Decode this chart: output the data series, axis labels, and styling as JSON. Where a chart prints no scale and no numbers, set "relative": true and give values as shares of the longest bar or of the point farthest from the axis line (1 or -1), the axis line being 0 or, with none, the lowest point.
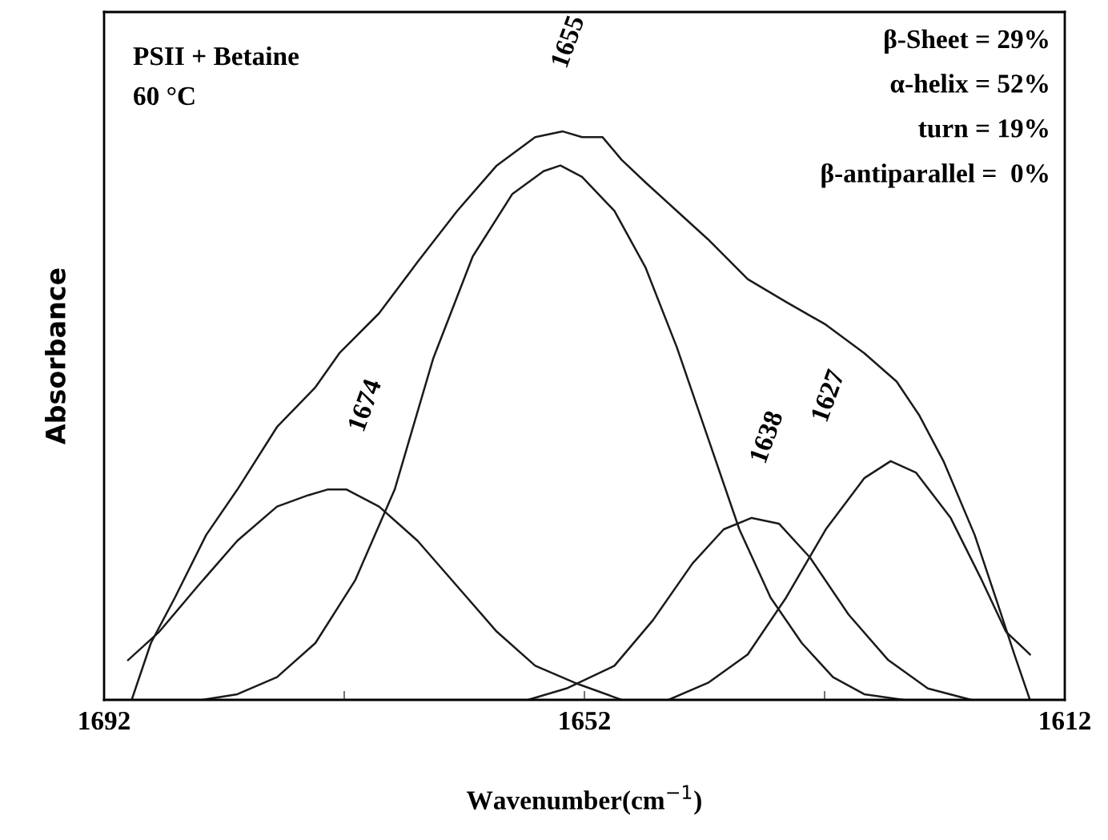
{
  "chart_data": {
    "type": "line",
    "relative": true,
    "xlabel": "Wavenumber(cm$^{−1}$)",
    "ylabel": "Absorbance",
    "xlim": [
      1692,
      1612
    ],
    "xticks": [
      1692,
      {
        "value": 1672,
        "label": null
      },
      1652,
      {
        "value": 1632,
        "label": null
      },
      1612
    ],
    "grid": false,
    "legend": false,
    "marker": "none",
    "line_style": "solid",
    "series": [
      {
        "color": "#1a1a1a",
        "x": [
          1689.7,
          1688.1,
          1686.1,
          1683.5,
          1680.9,
          1677.6,
          1674.4,
          1672.4,
          1669.1,
          1665.9,
          1662.6,
          1659.3,
          1656.1,
          1653.8,
          1652.2,
          1650.5,
          1648.9,
          1646.9,
          1644.3,
          1641.7,
          1638.4,
          1635.2,
          1631.9,
          1628.7,
          1626.0,
          1624.1,
          1622.1,
          1619.5,
          1617.6,
          1616.2,
          1614.9
        ],
        "values": [
          0.0,
          0.1,
          0.18,
          0.29,
          0.37,
          0.48,
          0.55,
          0.61,
          0.68,
          0.77,
          0.86,
          0.94,
          0.99,
          1.0,
          0.99,
          0.99,
          0.95,
          0.91,
          0.86,
          0.81,
          0.74,
          0.7,
          0.66,
          0.61,
          0.56,
          0.5,
          0.42,
          0.29,
          0.17,
          0.08,
          0.0
        ]
      },
      {
        "color": "#1a1a1a",
        "x": [
          1690.0,
          1687.4,
          1684.2,
          1680.9,
          1677.6,
          1675.0,
          1673.4,
          1671.8,
          1669.1,
          1665.9,
          1662.6,
          1659.3,
          1656.1,
          1652.8,
          1648.9
        ],
        "values": [
          0.07,
          0.12,
          0.2,
          0.28,
          0.34,
          0.36,
          0.37,
          0.37,
          0.34,
          0.28,
          0.2,
          0.12,
          0.06,
          0.03,
          0.0
        ]
      },
      {
        "color": "#1a1a1a",
        "x": [
          1683.8,
          1680.9,
          1677.6,
          1674.4,
          1671.1,
          1667.8,
          1664.6,
          1661.3,
          1658.0,
          1655.4,
          1654.0,
          1652.2,
          1649.5,
          1646.9,
          1644.3,
          1641.7,
          1639.1,
          1636.5,
          1633.9,
          1631.3,
          1628.7,
          1625.4
        ],
        "values": [
          0.0,
          0.01,
          0.04,
          0.1,
          0.21,
          0.37,
          0.6,
          0.78,
          0.89,
          0.93,
          0.94,
          0.92,
          0.86,
          0.76,
          0.62,
          0.46,
          0.3,
          0.18,
          0.1,
          0.04,
          0.01,
          0.0
        ]
      },
      {
        "color": "#1a1a1a",
        "x": [
          1656.7,
          1653.5,
          1649.5,
          1646.3,
          1643.0,
          1640.4,
          1638.1,
          1635.8,
          1633.2,
          1630.0,
          1626.7,
          1623.4,
          1619.8
        ],
        "values": [
          0.0,
          0.02,
          0.06,
          0.14,
          0.24,
          0.3,
          0.32,
          0.31,
          0.25,
          0.15,
          0.07,
          0.02,
          0.0
        ]
      },
      {
        "color": "#1a1a1a",
        "x": [
          1645.0,
          1641.7,
          1638.4,
          1635.2,
          1631.9,
          1628.7,
          1626.5,
          1624.4,
          1621.5,
          1618.9,
          1616.9,
          1614.9
        ],
        "values": [
          0.0,
          0.03,
          0.08,
          0.18,
          0.3,
          0.39,
          0.42,
          0.4,
          0.32,
          0.21,
          0.12,
          0.08
        ]
      }
    ],
    "annotations": [
      "PSII + Betaine",
      "60 °C",
      "β-Sheet = 29%",
      "α-helix = 52%",
      "turn = 19%",
      "β-antiparallel =  0%",
      {
        "text": "1674",
        "x": 1673.4,
        "y": 0.37
      },
      {
        "text": "1655",
        "x": 1654.0,
        "y": 1.0
      },
      {
        "text": "1638",
        "x": 1638.1,
        "y": 0.32
      },
      {
        "text": "1627",
        "x": 1626.5,
        "y": 0.42
      }
    ]
  }
}
